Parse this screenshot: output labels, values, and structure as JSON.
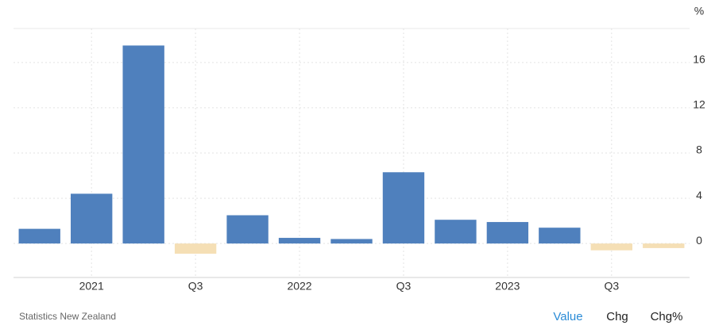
{
  "chart_data": {
    "type": "bar",
    "y_unit": "%",
    "categories": [
      null,
      "2021",
      null,
      "Q3",
      null,
      "2022",
      null,
      "Q3",
      null,
      "2023",
      null,
      "Q3",
      null
    ],
    "values": [
      1.3,
      4.4,
      17.5,
      -0.9,
      2.5,
      0.5,
      0.4,
      6.3,
      2.1,
      1.9,
      1.4,
      -0.6,
      -0.4
    ],
    "color": "#4f80bd",
    "negative_color": "#f5dfb5",
    "ylim": [
      -3,
      19
    ],
    "yticks": [
      0,
      4,
      8,
      12,
      16
    ],
    "grid": true
  },
  "source": "Statistics New Zealand",
  "buttons": [
    "Value",
    "Chg",
    "Chg%"
  ]
}
